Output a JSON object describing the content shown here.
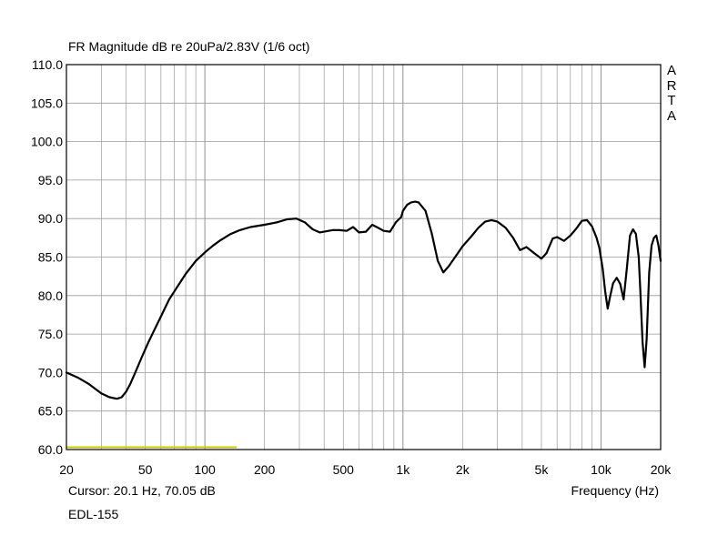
{
  "header": {
    "title": "FR Magnitude dB re 20uPa/2.83V (1/6 oct)",
    "brand": [
      "A",
      "R",
      "T",
      "A"
    ]
  },
  "footer": {
    "cursor_readout": "Cursor: 20.1 Hz, 70.05 dB",
    "label": "EDL-155"
  },
  "chart_data": {
    "type": "line",
    "title": "FR Magnitude dB re 20uPa/2.83V (1/6 oct)",
    "xlabel": "Frequency (Hz)",
    "ylabel": "",
    "xscale": "log",
    "xlim": [
      20,
      20000
    ],
    "ylim": [
      60,
      110
    ],
    "grid": true,
    "x_ticks": [
      20,
      50,
      100,
      200,
      500,
      1000,
      2000,
      5000,
      10000,
      20000
    ],
    "x_tick_labels": [
      "20",
      "50",
      "100",
      "200",
      "500",
      "1k",
      "2k",
      "5k",
      "10k",
      "20k"
    ],
    "y_ticks": [
      60,
      65,
      70,
      75,
      80,
      85,
      90,
      95,
      100,
      105,
      110
    ],
    "y_tick_labels": [
      "60.0",
      "65.0",
      "70.0",
      "75.0",
      "80.0",
      "85.0",
      "90.0",
      "95.0",
      "100.0",
      "105.0",
      "110.0"
    ],
    "colors": {
      "line": "#000000",
      "grid": "#9a9a9a",
      "frame": "#000000",
      "baseline": "#c8c800"
    },
    "series": [
      {
        "color": "#000000",
        "x": [
          20,
          23,
          26,
          30,
          33,
          36,
          38,
          40,
          42,
          45,
          48,
          52,
          56,
          60,
          66,
          72,
          80,
          90,
          100,
          110,
          120,
          135,
          150,
          170,
          200,
          230,
          260,
          290,
          320,
          350,
          380,
          400,
          440,
          480,
          520,
          560,
          600,
          650,
          700,
          750,
          800,
          860,
          920,
          980,
          1000,
          1050,
          1100,
          1150,
          1200,
          1300,
          1400,
          1500,
          1600,
          1700,
          1800,
          2000,
          2200,
          2400,
          2600,
          2800,
          3000,
          3300,
          3600,
          3900,
          4200,
          4600,
          5000,
          5300,
          5700,
          6000,
          6500,
          7000,
          7500,
          8000,
          8500,
          9000,
          9500,
          9800,
          10200,
          10500,
          10800,
          11100,
          11500,
          12000,
          12500,
          13000,
          13500,
          14000,
          14500,
          15000,
          15500,
          15800,
          16200,
          16600,
          17000,
          17500,
          18000,
          18500,
          19000,
          19500,
          20000
        ],
        "y": [
          70.0,
          69.3,
          68.5,
          67.3,
          66.8,
          66.6,
          66.8,
          67.5,
          68.5,
          70.3,
          72.0,
          74.0,
          75.7,
          77.3,
          79.5,
          81.0,
          82.8,
          84.5,
          85.6,
          86.5,
          87.2,
          88.0,
          88.5,
          88.9,
          89.2,
          89.5,
          89.9,
          90.0,
          89.5,
          88.6,
          88.2,
          88.3,
          88.5,
          88.5,
          88.4,
          88.9,
          88.2,
          88.3,
          89.2,
          88.8,
          88.4,
          88.3,
          89.5,
          90.2,
          91.0,
          91.8,
          92.1,
          92.2,
          92.1,
          91.0,
          88.0,
          84.5,
          83.0,
          83.8,
          84.7,
          86.4,
          87.6,
          88.8,
          89.6,
          89.8,
          89.6,
          88.8,
          87.5,
          85.9,
          86.3,
          85.5,
          84.8,
          85.5,
          87.4,
          87.6,
          87.1,
          87.8,
          88.7,
          89.7,
          89.8,
          89.0,
          87.5,
          86.2,
          83.5,
          80.5,
          78.3,
          79.8,
          81.6,
          82.3,
          81.5,
          79.5,
          83.5,
          87.8,
          88.6,
          88.0,
          85.0,
          80.5,
          74.0,
          70.7,
          74.3,
          83.0,
          86.5,
          87.5,
          87.8,
          86.5,
          84.5
        ]
      }
    ],
    "baseline_segment": {
      "x": [
        20,
        145
      ],
      "y": 60.3
    },
    "annotations": [
      "ARTA",
      "Cursor: 20.1 Hz, 70.05 dB",
      "EDL-155"
    ]
  }
}
